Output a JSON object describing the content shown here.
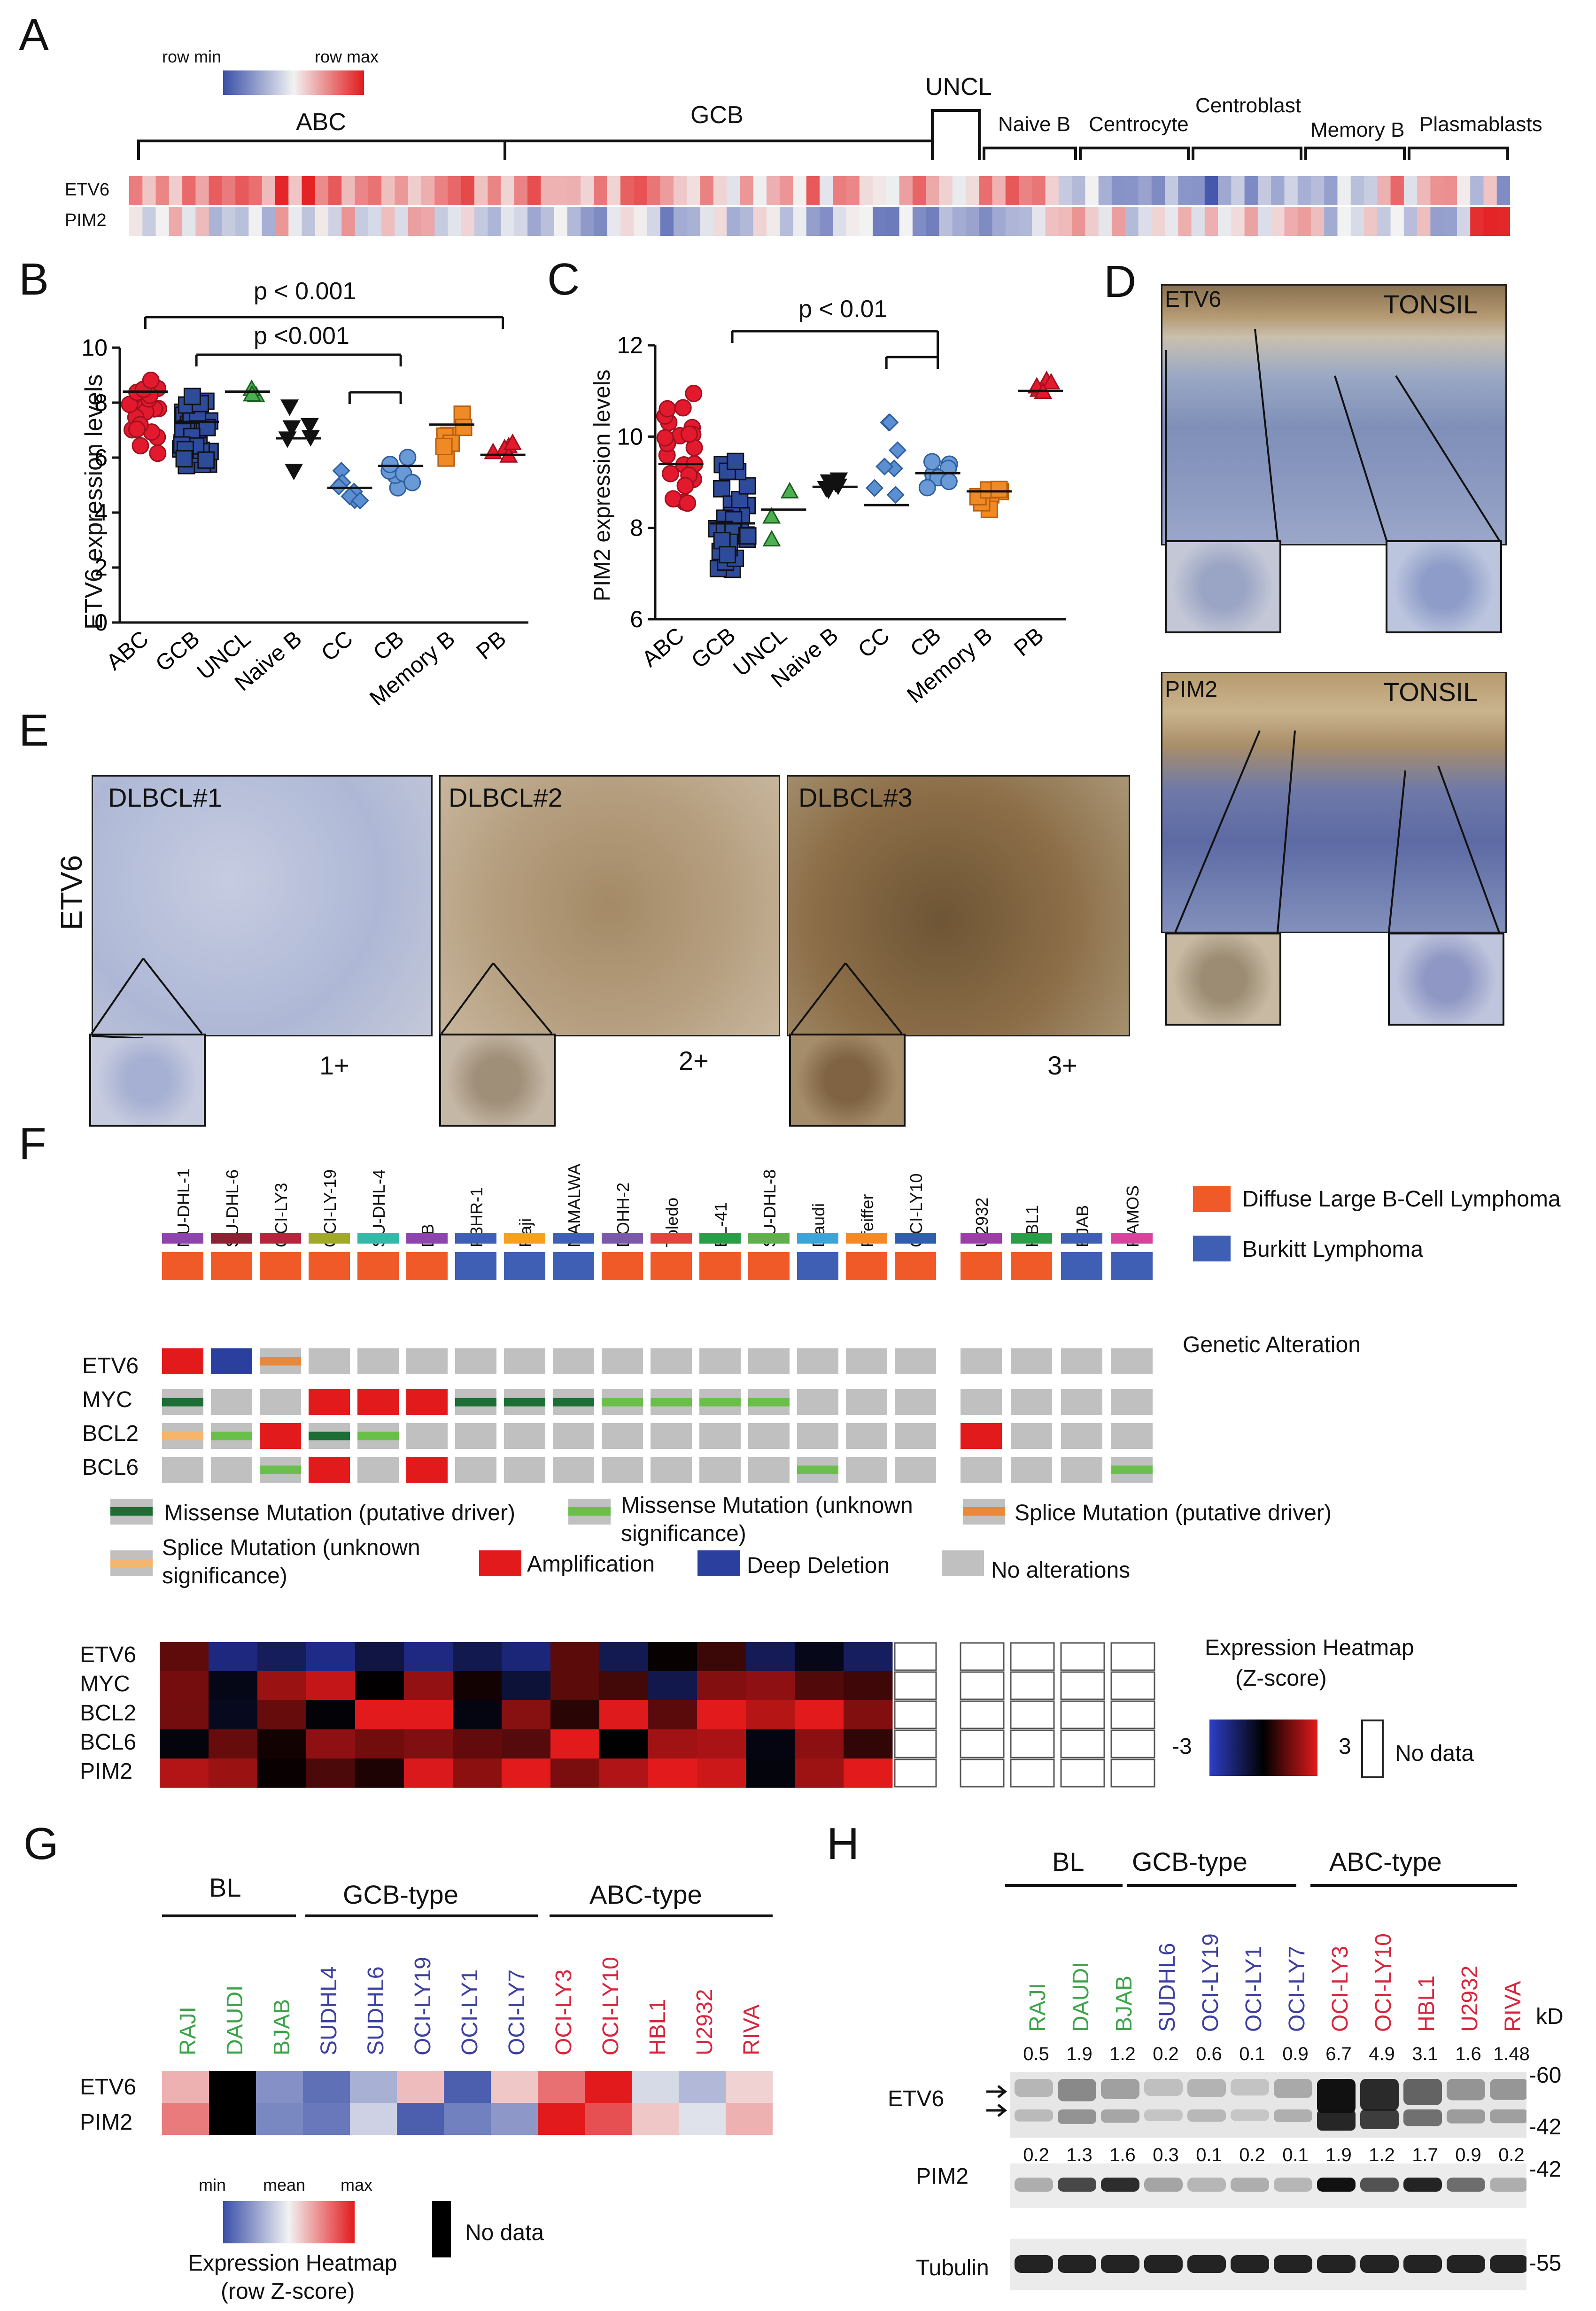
{
  "panels": {
    "A": "A",
    "B": "B",
    "C": "C",
    "D": "D",
    "E": "E",
    "F": "F",
    "G": "G",
    "H": "H"
  },
  "panelA": {
    "legend_min": "row min",
    "legend_max": "row max",
    "groups": [
      "ABC",
      "GCB",
      "UNCL",
      "Naive B",
      "Centrocyte",
      "Centroblast",
      "Memory B",
      "Plasmablasts"
    ],
    "rows": [
      "ETV6",
      "PIM2"
    ],
    "colors": {
      "low": "#3a4fa8",
      "mid": "#f2f2f2",
      "high": "#e31a1c"
    }
  },
  "panelB": {
    "p1": "p < 0.001",
    "p2": "p <0.001",
    "ylabel": "ETV6 expression levels",
    "chart_data": {
      "type": "scatter",
      "categories": [
        "ABC",
        "GCB",
        "UNCL",
        "Naive B",
        "CC",
        "CB",
        "Memory B",
        "PB"
      ],
      "ylim": [
        0,
        10
      ],
      "yticks": [
        "0",
        "2",
        "4",
        "6",
        "8",
        "10"
      ],
      "medians": [
        8.4,
        7.3,
        8.4,
        6.7,
        4.9,
        5.7,
        7.2,
        6.1
      ],
      "ranges": [
        [
          6.0,
          9.2
        ],
        [
          5.3,
          9.0
        ],
        [
          8.2,
          8.8
        ],
        [
          5.0,
          8.0
        ],
        [
          4.2,
          5.7
        ],
        [
          4.9,
          6.6
        ],
        [
          5.9,
          8.3
        ],
        [
          5.8,
          6.6
        ]
      ]
    }
  },
  "panelC": {
    "p1": "p < 0.01",
    "ylabel": "PIM2 expression levels",
    "chart_data": {
      "type": "scatter",
      "categories": [
        "ABC",
        "GCB",
        "UNCL",
        "Naive B",
        "CC",
        "CB",
        "Memory B",
        "PB"
      ],
      "ylim": [
        6,
        12
      ],
      "yticks": [
        "6",
        "8",
        "10",
        "12"
      ],
      "medians": [
        9.4,
        8.1,
        8.4,
        8.9,
        8.5,
        9.2,
        8.8,
        11.0
      ],
      "ranges": [
        [
          8.2,
          11.4
        ],
        [
          6.9,
          9.7
        ],
        [
          7.6,
          8.9
        ],
        [
          8.8,
          9.1
        ],
        [
          8.3,
          11.1
        ],
        [
          8.6,
          9.6
        ],
        [
          8.1,
          9.0
        ],
        [
          10.9,
          11.3
        ]
      ]
    }
  },
  "panelD": {
    "etv6": "ETV6",
    "pim2": "PIM2",
    "tonsil1": "TONSIL",
    "tonsil2": "TONSIL"
  },
  "panelE": {
    "ylabel": "ETV6",
    "cases": [
      "DLBCL#1",
      "DLBCL#2",
      "DLBCL#3"
    ],
    "scores": [
      "1+",
      "2+",
      "3+"
    ]
  },
  "panelF": {
    "cell_lines_dlbcl": [
      "NU-DHL-1",
      "SU-DHL-6",
      "OCI-LY3",
      "OCI-LY-19",
      "SU-DHL-4",
      "DB",
      "P3HR-1",
      "Raji",
      "NAMALWA",
      "DOHH-2",
      "Toledo",
      "BL-41",
      "SU-DHL-8",
      "Daudi",
      "Pfeiffer",
      "OCI-LY10"
    ],
    "cell_lines_other": [
      "U2932",
      "HBL1",
      "BJAB",
      "RAMOS"
    ],
    "legend_dlbcl": "Diffuse Large B-Cell Lymphoma",
    "legend_bl": "Burkitt Lymphoma",
    "genetic_alteration": "Genetic Alteration",
    "genes": [
      "ETV6",
      "MYC",
      "BCL2",
      "BCL6"
    ],
    "heat_genes": [
      "ETV6",
      "MYC",
      "BCL2",
      "BCL6",
      "PIM2"
    ],
    "legend_missense_driver": "Missense Mutation (putative driver)",
    "legend_missense_unknown": "Missense Mutation (unknown significance)",
    "legend_splice_driver": "Splice Mutation (putative driver)",
    "legend_splice_unknown": "Splice Mutation (unknown significance)",
    "legend_amp": "Amplification",
    "legend_del": "Deep Deletion",
    "legend_noalt": "No alterations",
    "heatmap_title_1": "Expression Heatmap",
    "heatmap_title_2": "(Z-score)",
    "scale_min": "-3",
    "scale_max": "3",
    "no_data": "No data"
  },
  "panelG": {
    "groups": [
      "BL",
      "GCB-type",
      "ABC-type"
    ],
    "cells": [
      "RAJI",
      "DAUDI",
      "BJAB",
      "SUDHL4",
      "SUDHL6",
      "OCI-LY19",
      "OCI-LY1",
      "OCI-LY7",
      "OCI-LY3",
      "OCI-LY10",
      "HBL1",
      "U2932",
      "RIVA"
    ],
    "rows": [
      "ETV6",
      "PIM2"
    ],
    "legend_min": "min",
    "legend_mean": "mean",
    "legend_max": "max",
    "legend_title_1": "Expression Heatmap",
    "legend_title_2": "(row Z-score)",
    "no_data": "No data"
  },
  "panelH": {
    "groups": [
      "BL",
      "GCB-type",
      "ABC-type"
    ],
    "cells": [
      "RAJI",
      "DAUDI",
      "BJAB",
      "SUDHL6",
      "OCI-LY19",
      "OCI-LY1",
      "OCI-LY7",
      "OCI-LY3",
      "OCI-LY10",
      "HBL1",
      "U2932",
      "RIVA"
    ],
    "etv6_quant": [
      "0.5",
      "1.9",
      "1.2",
      "0.2",
      "0.6",
      "0.1",
      "0.9",
      "6.7",
      "4.9",
      "3.1",
      "1.6",
      "1.48"
    ],
    "pim2_quant": [
      "0.2",
      "1.3",
      "1.6",
      "0.3",
      "0.1",
      "0.2",
      "0.1",
      "1.9",
      "1.2",
      "1.7",
      "0.9",
      "0.2"
    ],
    "kd": "kD",
    "mw": [
      "-60",
      "-42",
      "-42",
      "-55"
    ],
    "rows": [
      "ETV6",
      "PIM2",
      "Tubulin"
    ]
  }
}
